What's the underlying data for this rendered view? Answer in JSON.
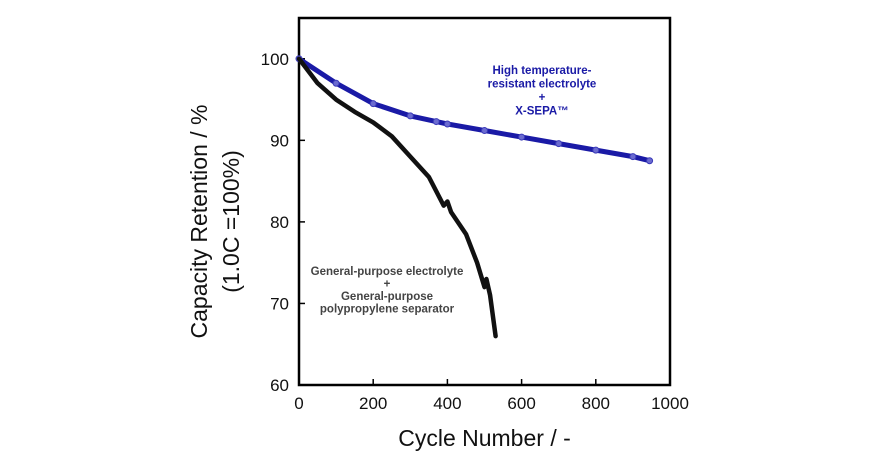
{
  "chart_data": {
    "type": "line",
    "xlabel": "Cycle Number / -",
    "ylabel": [
      "Capacity Retention / %",
      "(1.0C =100%)"
    ],
    "xlim": [
      0,
      1000
    ],
    "ylim": [
      60,
      105
    ],
    "xticks": [
      0,
      200,
      400,
      600,
      800,
      1000
    ],
    "yticks": [
      60,
      70,
      80,
      90,
      100
    ],
    "grid": false,
    "series": [
      {
        "name": [
          "High temperature-",
          "resistant electrolyte",
          "+",
          "X-SEPA™"
        ],
        "color": "#1a1aa6",
        "x": [
          0,
          100,
          200,
          300,
          370,
          400,
          500,
          600,
          700,
          800,
          900,
          945
        ],
        "y": [
          100,
          97,
          94.5,
          93,
          92.3,
          92,
          91.2,
          90.4,
          89.6,
          88.8,
          88,
          87.5
        ]
      },
      {
        "name": [
          "General-purpose electrolyte",
          "+",
          "General-purpose",
          "polypropylene separator"
        ],
        "color": "#111111",
        "x": [
          0,
          50,
          100,
          150,
          200,
          250,
          300,
          350,
          390,
          400,
          410,
          450,
          480,
          500,
          505,
          515,
          530
        ],
        "y": [
          100,
          97,
          95,
          93.5,
          92.2,
          90.5,
          88,
          85.5,
          82,
          82.5,
          81.2,
          78.5,
          75,
          72,
          73,
          71,
          66
        ]
      }
    ]
  }
}
